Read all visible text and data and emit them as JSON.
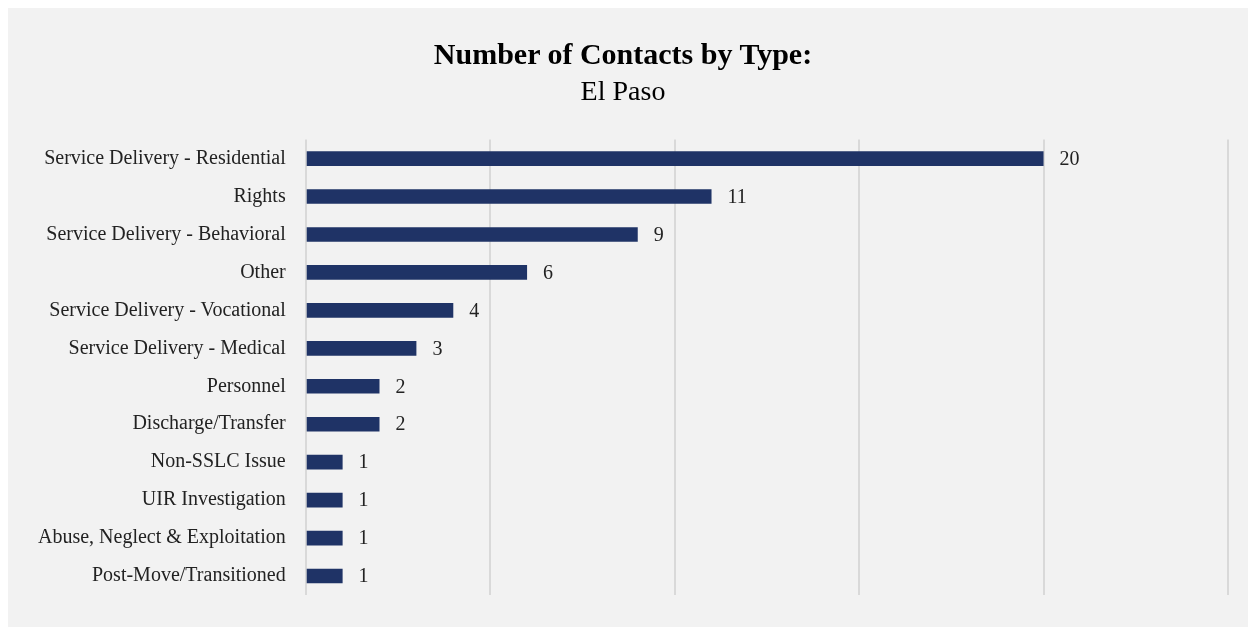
{
  "chart_data": {
    "type": "bar",
    "orientation": "horizontal",
    "title": "Number of Contacts by Type:",
    "subtitle": "El Paso",
    "categories": [
      "Service Delivery - Residential",
      "Rights",
      "Service Delivery - Behavioral",
      "Other",
      "Service Delivery - Vocational",
      "Service Delivery - Medical",
      "Personnel",
      "Discharge/Transfer",
      "Non-SSLC Issue",
      "UIR Investigation",
      "Abuse, Neglect & Exploitation",
      "Post-Move/Transitioned"
    ],
    "values": [
      20,
      11,
      9,
      6,
      4,
      3,
      2,
      2,
      1,
      1,
      1,
      1
    ],
    "color": "#1f3366",
    "xlim": [
      0,
      25
    ],
    "xticks": [
      {
        "value": 0,
        "label": null
      },
      {
        "value": 5,
        "label": null
      },
      {
        "value": 10,
        "label": null
      },
      {
        "value": 15,
        "label": null
      },
      {
        "value": 20,
        "label": null
      },
      {
        "value": 25,
        "label": null
      }
    ],
    "tick_labels": "y",
    "grid": "x",
    "legend": false,
    "data_labels": true
  }
}
